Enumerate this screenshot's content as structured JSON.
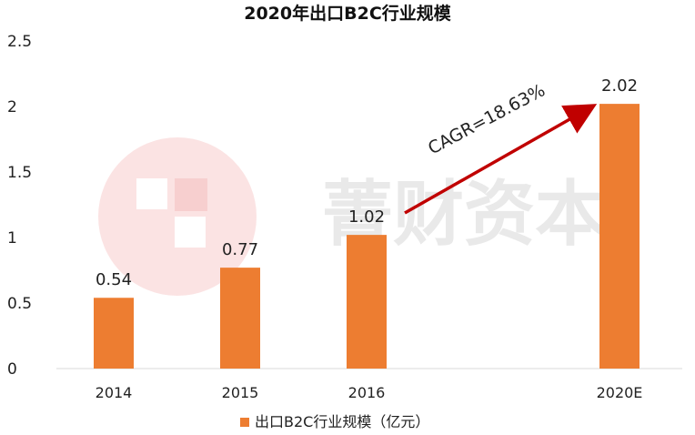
{
  "chart_data": {
    "type": "bar",
    "title": "2020年出口B2C行业规模",
    "categories": [
      "2014",
      "2015",
      "2016",
      "2020E"
    ],
    "series": [
      {
        "name": "出口B2C行业规模（亿元）",
        "values": [
          0.54,
          0.77,
          1.02,
          2.02
        ]
      }
    ],
    "data_labels": [
      "0.54",
      "0.77",
      "1.02",
      "2.02"
    ],
    "yticks": [
      "0",
      "0.5",
      "1",
      "1.5",
      "2",
      "2.5"
    ],
    "ylim": [
      0,
      2.5
    ],
    "xlabel": "",
    "ylabel": "",
    "grid": false,
    "legend_position": "bottom",
    "bar_color": "#ED7D31",
    "annotation": {
      "text": "CAGR=18.63%",
      "arrow_from": "2016",
      "arrow_to": "2020E",
      "arrow_color": "#C00000"
    },
    "watermark": {
      "text": "菁财资本",
      "color": "#E9E9E9",
      "logo_color": "#FBE3E3"
    }
  }
}
